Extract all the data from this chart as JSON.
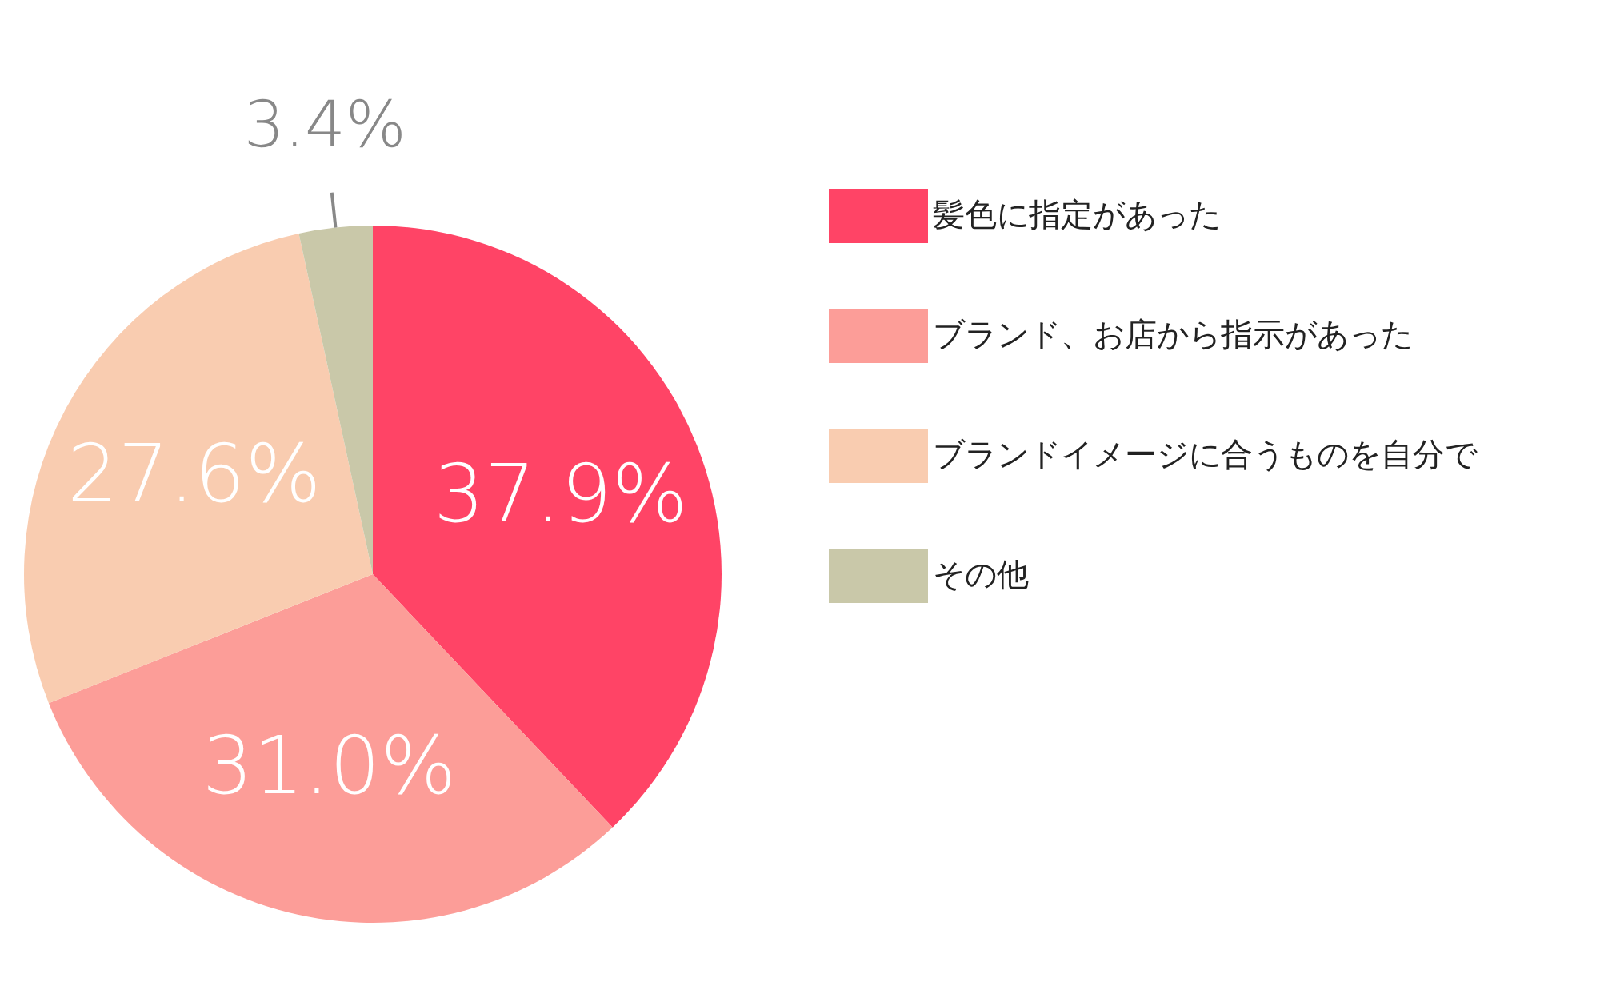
{
  "chart_data": {
    "type": "pie",
    "categories": [
      "髪色に指定があった",
      "ブランド、お店から指示があった",
      "ブランドイメージに合うものを自分で",
      "その他"
    ],
    "values": [
      37.9,
      31.0,
      27.6,
      3.4
    ],
    "colors": [
      "#ff4466",
      "#fc9d98",
      "#f9ccb0",
      "#c9c8a9"
    ],
    "value_labels": [
      "37.9%",
      "31.0%",
      "27.6%",
      "3.4%"
    ],
    "legend": "right"
  }
}
